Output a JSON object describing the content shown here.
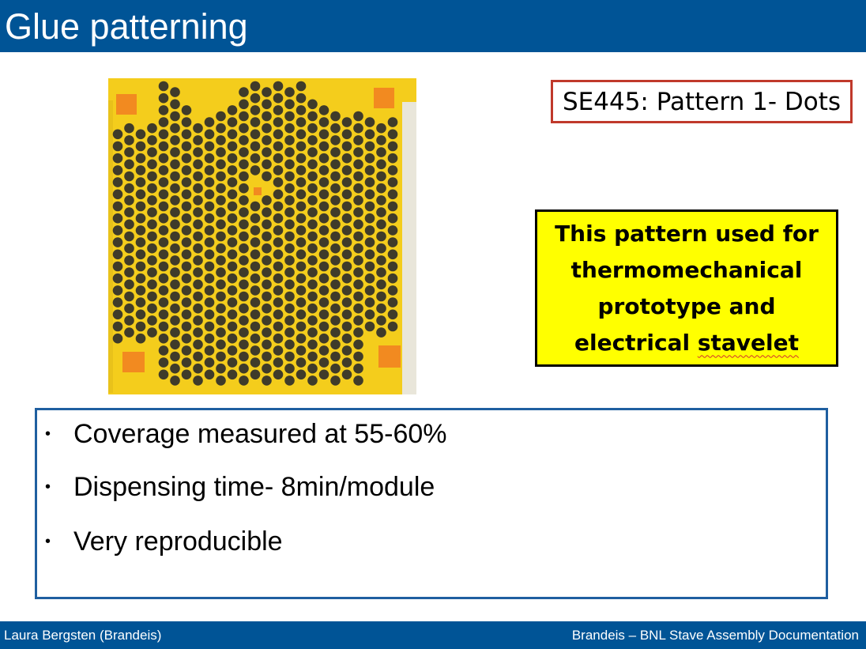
{
  "slide": {
    "title": "Glue patterning",
    "pattern_label": "SE445: Pattern 1- Dots",
    "callout_lines": [
      "This pattern used for",
      "thermomechanical",
      "prototype and"
    ],
    "callout_last_prefix": "electrical ",
    "callout_last_word": "stavelet",
    "bullets": [
      "Coverage measured at 55-60%",
      "Dispensing time- 8min/module",
      "Very reproducible"
    ]
  },
  "footer": {
    "author": "Laura Bergsten (Brandeis)",
    "project": "Brandeis – BNL Stave Assembly Documentation"
  },
  "colors": {
    "header_bar": "#005496",
    "label_border": "#c0392b",
    "callout_fill": "#ffff00",
    "bullet_border": "#1f5fa0",
    "kapton_yellow": "#f4cd1c",
    "glue_dot": "#3f3b2a",
    "pad_orange": "#f28a20"
  }
}
